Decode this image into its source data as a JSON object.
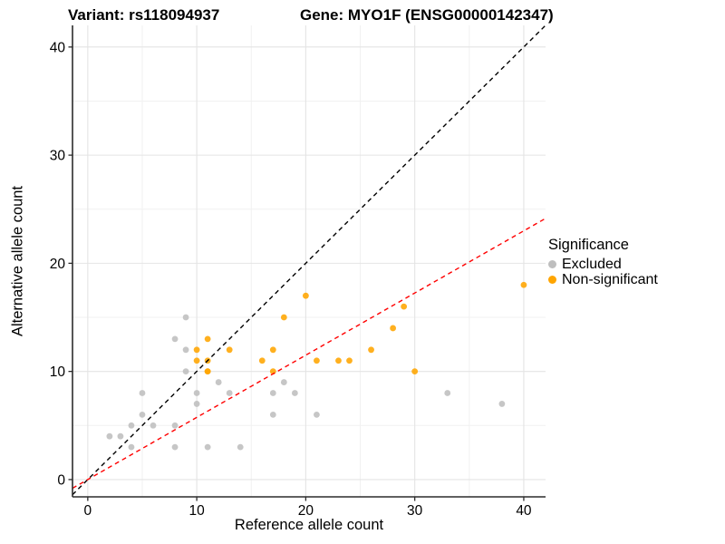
{
  "title": {
    "variant": "Variant: rs118094937",
    "gene": "Gene: MYO1F (ENSG00000142347)"
  },
  "chart_data": {
    "type": "scatter",
    "xlabel": "Reference allele count",
    "ylabel": "Alternative allele count",
    "xlim": [
      -1.4,
      42
    ],
    "ylim": [
      -1.6,
      42
    ],
    "xticks": [
      0,
      10,
      20,
      30,
      40
    ],
    "yticks": [
      0,
      10,
      20,
      30,
      40
    ],
    "xticks_minor": [
      5,
      15,
      25,
      35
    ],
    "yticks_minor": [
      5,
      15,
      25,
      35
    ],
    "grid": true,
    "background": "#ffffff",
    "grid_major_color": "#e4e4e4",
    "grid_minor_color": "#f1f1f1",
    "series": [
      {
        "name": "Excluded",
        "color": "#BEBEBE",
        "points": [
          [
            2,
            4
          ],
          [
            3,
            4
          ],
          [
            4,
            3
          ],
          [
            4,
            5
          ],
          [
            5,
            6
          ],
          [
            5,
            8
          ],
          [
            6,
            5
          ],
          [
            8,
            3
          ],
          [
            8,
            5
          ],
          [
            8,
            13
          ],
          [
            9,
            10
          ],
          [
            9,
            12
          ],
          [
            9,
            15
          ],
          [
            10,
            7
          ],
          [
            10,
            8
          ],
          [
            11,
            3
          ],
          [
            12,
            9
          ],
          [
            13,
            8
          ],
          [
            14,
            3
          ],
          [
            17,
            6
          ],
          [
            17,
            8
          ],
          [
            18,
            9
          ],
          [
            19,
            8
          ],
          [
            21,
            6
          ],
          [
            33,
            8
          ],
          [
            38,
            7
          ]
        ]
      },
      {
        "name": "Non-significant",
        "color": "#FFA500",
        "points": [
          [
            10,
            11
          ],
          [
            10,
            12
          ],
          [
            11,
            10
          ],
          [
            11,
            10
          ],
          [
            11,
            11
          ],
          [
            11,
            13
          ],
          [
            13,
            12
          ],
          [
            16,
            11
          ],
          [
            17,
            10
          ],
          [
            17,
            12
          ],
          [
            18,
            15
          ],
          [
            20,
            17
          ],
          [
            21,
            11
          ],
          [
            23,
            11
          ],
          [
            24,
            11
          ],
          [
            26,
            12
          ],
          [
            28,
            14
          ],
          [
            29,
            16
          ],
          [
            30,
            10
          ],
          [
            40,
            18
          ]
        ]
      }
    ],
    "ablines": [
      {
        "name": "identity-line",
        "slope": 1,
        "intercept": 0,
        "color": "#000000",
        "dash": "5,4"
      },
      {
        "name": "expected-ratio-line",
        "slope": 0.575,
        "intercept": 0,
        "color": "#FF0000",
        "dash": "5,4"
      }
    ],
    "legend": {
      "title": "Significance",
      "position": "right",
      "entries": [
        "Excluded",
        "Non-significant"
      ]
    }
  }
}
